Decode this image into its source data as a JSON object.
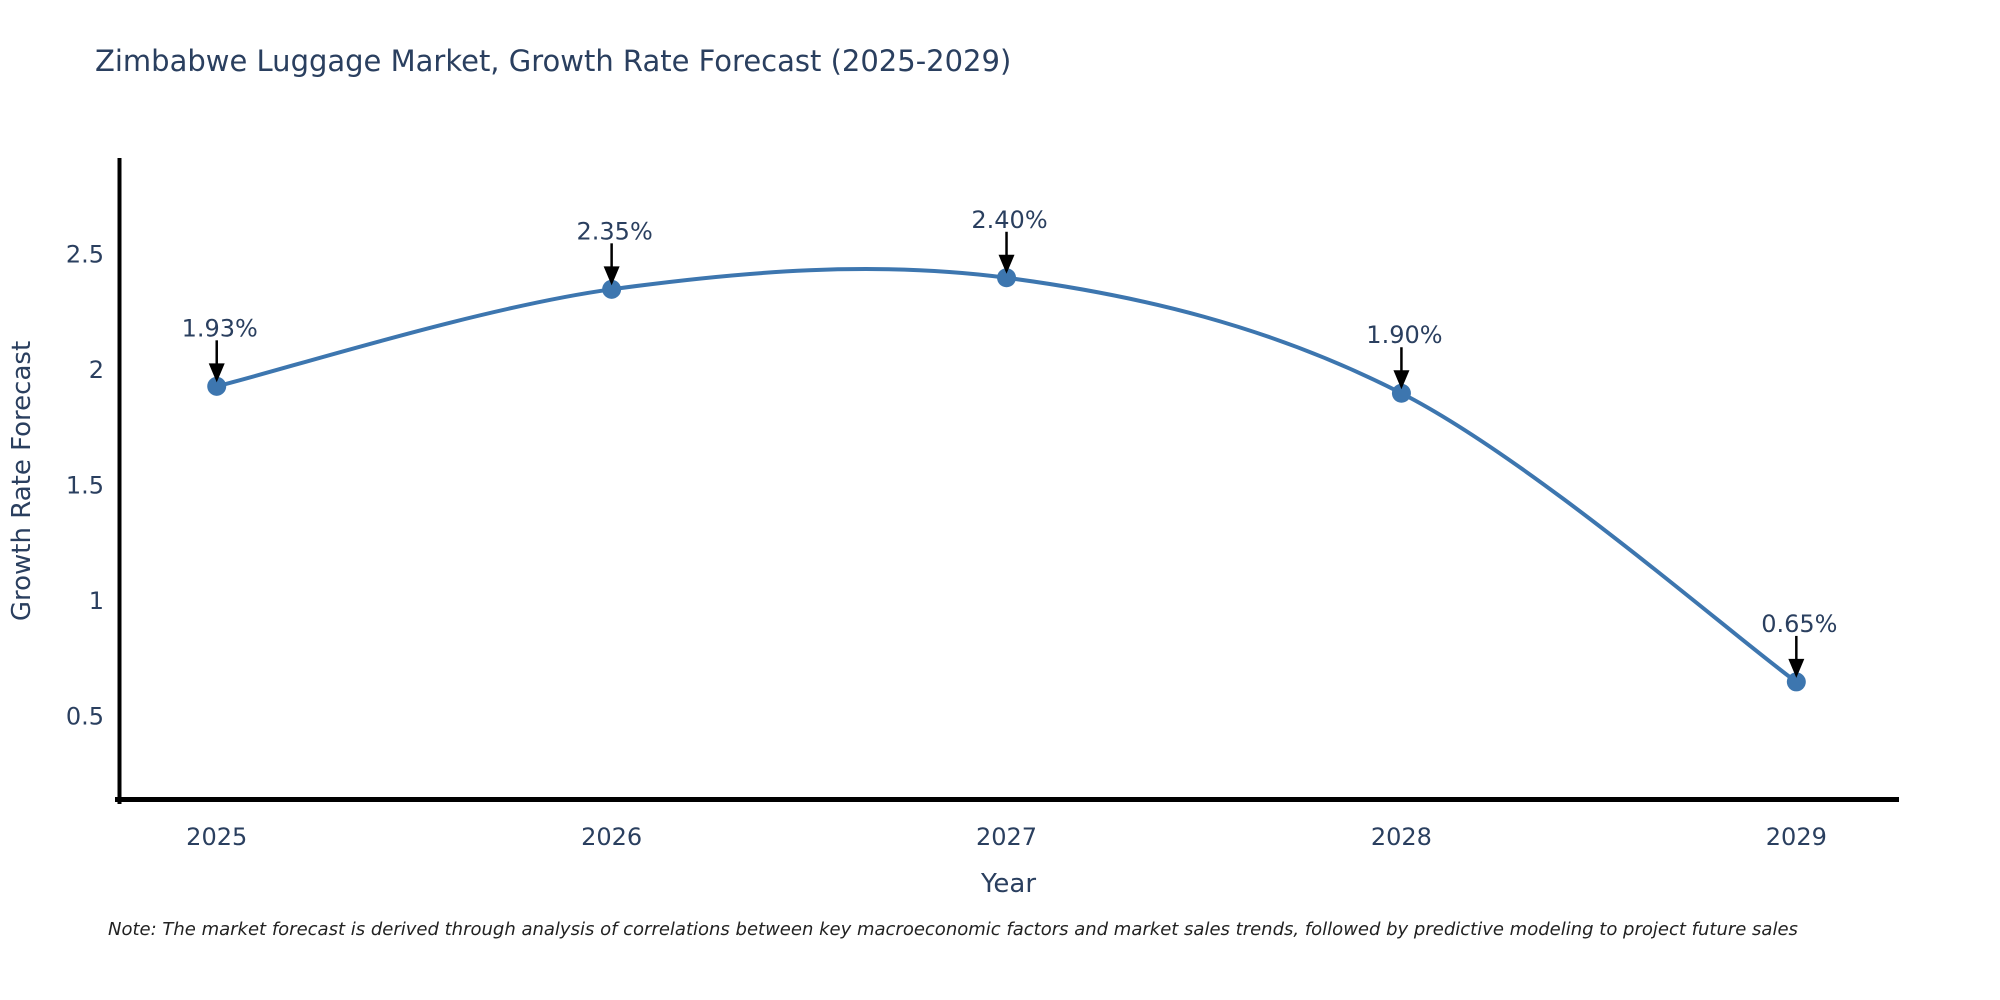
{
  "chart_data": {
    "type": "line",
    "title": "Zimbabwe Luggage Market, Growth Rate Forecast (2025-2029)",
    "xlabel": "Year",
    "ylabel": "Growth Rate Forecast",
    "x": [
      2025,
      2026,
      2027,
      2028,
      2029
    ],
    "values": [
      1.93,
      2.35,
      2.4,
      1.9,
      0.65
    ],
    "point_labels": [
      "1.93%",
      "2.35%",
      "2.40%",
      "1.90%",
      "0.65%"
    ],
    "xticks": [
      2025,
      2026,
      2027,
      2028,
      2029
    ],
    "yticks": [
      0.5,
      1,
      1.5,
      2,
      2.5
    ],
    "xlim": [
      2024.75,
      2029.26
    ],
    "ylim": [
      0.13,
      2.91
    ],
    "line_shape": "spline",
    "legend": "none",
    "grid": false,
    "colors": {
      "line": "#3d76af",
      "marker": "#3d76af",
      "axis": "#000000",
      "text": "#2a3f5f",
      "annotation_arrow": "#000000",
      "note_text": "#222222",
      "background": "#ffffff"
    },
    "note": "Note: The market forecast is derived through analysis of correlations between key macroeconomic factors and market sales trends, followed by predictive modeling to project future sales"
  }
}
